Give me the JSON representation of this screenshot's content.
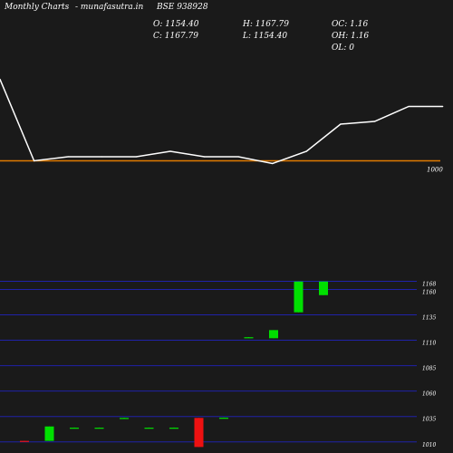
{
  "header": {
    "site": "Monthly Charts",
    "site_link": "- munafasutra.in",
    "symbol": "BSE 938928",
    "open": "O: 1154.40",
    "close": "C: 1167.79",
    "high": "H: 1167.79",
    "low": "L: 1154.40",
    "oc": "OC: 1.16",
    "oh": "OH: 1.16",
    "ol": "OL: 0"
  },
  "colors": {
    "background": "#1a1a1a",
    "line": "#ffffff",
    "reference": "#e07b00",
    "grid": "#1f22a8",
    "up": "#00e000",
    "down": "#ee1111"
  },
  "chart_data": [
    {
      "type": "line",
      "reference_value": 1000,
      "reference_label": "1000",
      "x": [
        0,
        1,
        2,
        3,
        4,
        5,
        6,
        7,
        8,
        9,
        10,
        11,
        12,
        13
      ],
      "values": [
        1060,
        1000,
        1003,
        1003,
        1003,
        1007,
        1003,
        1003,
        998,
        1007,
        1027,
        1029,
        1040,
        1040
      ]
    },
    {
      "type": "candlestick",
      "yticks": [
        1010,
        1035,
        1060,
        1085,
        1110,
        1135,
        1160,
        1168
      ],
      "ylim": [
        1008,
        1172
      ],
      "candles": [
        {
          "o": 1011.0,
          "h": 1011.0,
          "l": 1010.6,
          "c": 1010.6
        },
        {
          "o": 1011.0,
          "h": 1025.2,
          "l": 1011.0,
          "c": 1025.2
        },
        {
          "o": 1024.0,
          "h": 1024.2,
          "l": 1023.8,
          "c": 1024.0
        },
        {
          "o": 1024.0,
          "h": 1024.2,
          "l": 1023.8,
          "c": 1024.0
        },
        {
          "o": 1033.6,
          "h": 1033.8,
          "l": 1033.4,
          "c": 1033.6
        },
        {
          "o": 1024.0,
          "h": 1024.2,
          "l": 1023.8,
          "c": 1024.0
        },
        {
          "o": 1024.0,
          "h": 1024.2,
          "l": 1023.8,
          "c": 1024.0
        },
        {
          "o": 1033.6,
          "h": 1033.6,
          "l": 1005.0,
          "c": 1005.0
        },
        {
          "o": 1033.8,
          "h": 1034.0,
          "l": 1033.6,
          "c": 1033.8
        },
        {
          "o": 1113.0,
          "h": 1113.2,
          "l": 1112.8,
          "c": 1113.0
        },
        {
          "o": 1112.0,
          "h": 1120.0,
          "l": 1112.0,
          "c": 1120.0
        },
        {
          "o": 1137.5,
          "h": 1167.8,
          "l": 1137.5,
          "c": 1167.8
        },
        {
          "o": 1154.4,
          "h": 1167.8,
          "l": 1154.4,
          "c": 1167.8
        }
      ]
    }
  ]
}
